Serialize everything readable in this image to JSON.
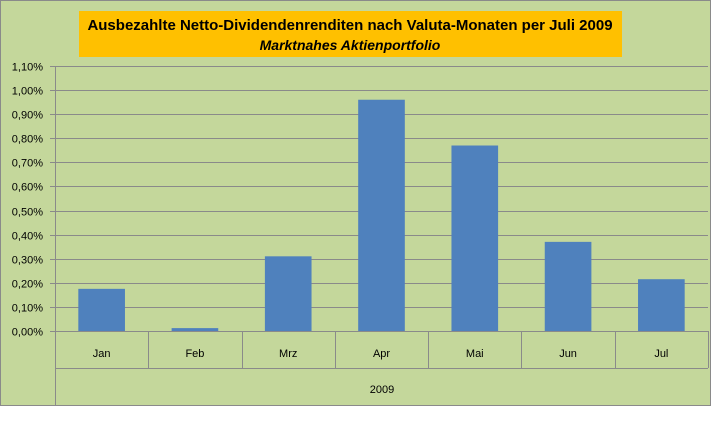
{
  "chart_data": {
    "type": "bar",
    "title": "Ausbezahlte Netto-Dividendenrenditen nach Valuta-Monaten per Juli 2009",
    "subtitle": "Marktnahes Aktienportfolio",
    "categories": [
      "Jan",
      "Feb",
      "Mrz",
      "Apr",
      "Mai",
      "Jun",
      "Jul"
    ],
    "category_group": "2009",
    "values": [
      0.175,
      0.012,
      0.31,
      0.96,
      0.77,
      0.37,
      0.215
    ],
    "value_unit": "%",
    "ylim": [
      0,
      1.1
    ],
    "yticks": [
      "0,00%",
      "0,10%",
      "0,20%",
      "0,30%",
      "0,40%",
      "0,50%",
      "0,60%",
      "0,70%",
      "0,80%",
      "0,90%",
      "1,00%",
      "1,10%"
    ],
    "grid": true,
    "legend": "none",
    "colors": {
      "background": "#c4d79b",
      "bar": "#4f81bd",
      "title_box": "#ffc000",
      "grid": "#8a8a8a"
    }
  }
}
